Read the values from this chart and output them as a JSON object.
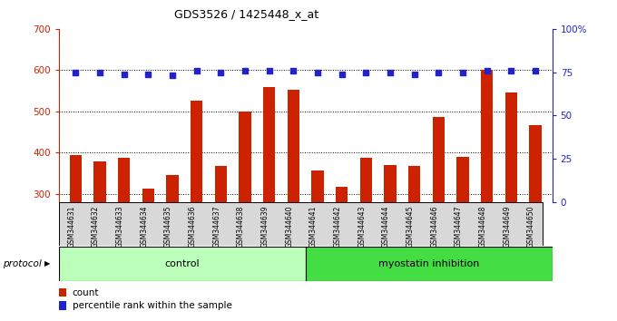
{
  "title": "GDS3526 / 1425448_x_at",
  "samples": [
    "GSM344631",
    "GSM344632",
    "GSM344633",
    "GSM344634",
    "GSM344635",
    "GSM344636",
    "GSM344637",
    "GSM344638",
    "GSM344639",
    "GSM344640",
    "GSM344641",
    "GSM344642",
    "GSM344643",
    "GSM344644",
    "GSM344645",
    "GSM344646",
    "GSM344647",
    "GSM344648",
    "GSM344649",
    "GSM344650"
  ],
  "bar_values": [
    395,
    378,
    388,
    313,
    347,
    527,
    368,
    500,
    558,
    553,
    358,
    318,
    387,
    370,
    368,
    487,
    390,
    600,
    545,
    466
  ],
  "dot_values": [
    75,
    75,
    74,
    74,
    73,
    76,
    75,
    76,
    76,
    76,
    75,
    74,
    75,
    75,
    74,
    75,
    75,
    76,
    76,
    76
  ],
  "control_count": 10,
  "myostatin_count": 10,
  "bar_color": "#cc2200",
  "dot_color": "#2222cc",
  "ylim_left": [
    280,
    700
  ],
  "ylim_right": [
    0,
    100
  ],
  "yticks_left": [
    300,
    400,
    500,
    600,
    700
  ],
  "yticks_right": [
    0,
    25,
    50,
    75,
    100
  ],
  "legend_items": [
    "count",
    "percentile rank within the sample"
  ],
  "protocol_label": "protocol",
  "control_label": "control",
  "myostatin_label": "myostatin inhibition",
  "label_bg_color": "#d8d8d8",
  "control_bg": "#bbffbb",
  "myostatin_bg": "#44dd44",
  "plot_bg": "#ffffff"
}
